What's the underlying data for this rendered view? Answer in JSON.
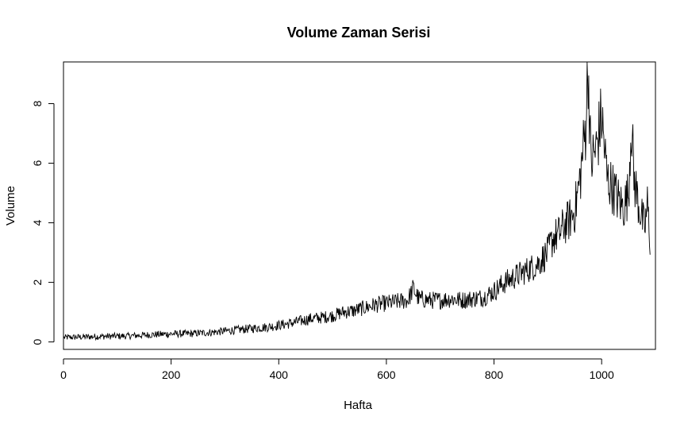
{
  "chart_data": {
    "type": "line",
    "title": "Volume Zaman Serisi",
    "xlabel": "Hafta",
    "ylabel": "Volume",
    "xlim": [
      0,
      1100
    ],
    "ylim": [
      -0.25,
      9.4
    ],
    "xticks": [
      0,
      200,
      400,
      600,
      800,
      1000
    ],
    "xtick_labels": [
      "0",
      "200",
      "400",
      "600",
      "800",
      "1000"
    ],
    "yticks": [
      0,
      2,
      4,
      6,
      8
    ],
    "ytick_labels": [
      "0",
      "2",
      "4",
      "6",
      "8"
    ],
    "grid": false,
    "legend": "none",
    "series": [
      {
        "x": [
          1,
          40,
          80,
          120,
          160,
          200,
          240,
          280,
          320,
          360,
          380,
          400,
          420,
          440,
          460,
          480,
          500,
          520,
          540,
          560,
          580,
          600,
          620,
          640,
          650,
          660,
          680,
          700,
          720,
          740,
          760,
          780,
          800,
          820,
          840,
          860,
          880,
          900,
          910,
          920,
          930,
          940,
          950,
          960,
          970,
          975,
          980,
          990,
          1000,
          1010,
          1020,
          1030,
          1040,
          1050,
          1055,
          1060,
          1070,
          1080,
          1085,
          1090
        ],
        "y": [
          0.15,
          0.17,
          0.19,
          0.2,
          0.24,
          0.27,
          0.28,
          0.33,
          0.4,
          0.47,
          0.5,
          0.56,
          0.62,
          0.7,
          0.78,
          0.82,
          0.88,
          1.0,
          1.05,
          1.15,
          1.25,
          1.3,
          1.35,
          1.4,
          1.8,
          1.45,
          1.4,
          1.4,
          1.45,
          1.4,
          1.45,
          1.5,
          1.7,
          2.0,
          2.2,
          2.4,
          2.6,
          3.0,
          3.5,
          3.6,
          3.9,
          4.1,
          4.4,
          5.5,
          7.2,
          9.3,
          6.0,
          6.5,
          7.6,
          5.5,
          5.2,
          4.8,
          4.5,
          5.0,
          7.5,
          5.5,
          4.5,
          3.8,
          4.6,
          3.4
        ]
      }
    ]
  }
}
